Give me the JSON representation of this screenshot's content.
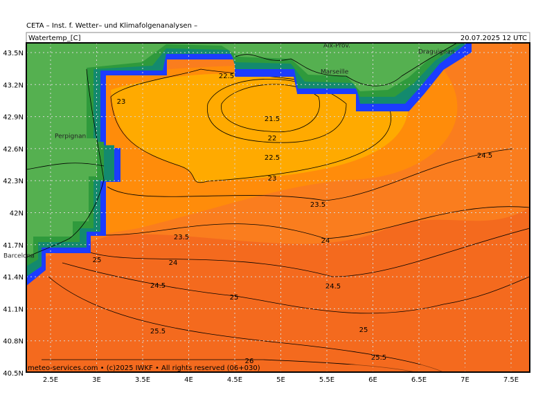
{
  "header": {
    "title": "CETA – Inst. f. Wetter– und Klimafolgenanalysen –"
  },
  "panel": {
    "variable": "Watertemp_[C]",
    "valid": "20.07.2025 12 UTC"
  },
  "axes": {
    "lat_labels": [
      "43.5N",
      "43.2N",
      "42.9N",
      "42.6N",
      "42.3N",
      "42N",
      "41.7N",
      "41.4N",
      "41.1N",
      "40.8N",
      "40.5N"
    ],
    "lon_labels": [
      "2.5E",
      "3E",
      "3.5E",
      "4E",
      "4.5E",
      "5E",
      "5.5E",
      "6E",
      "6.5E",
      "7E",
      "7.5E"
    ]
  },
  "contour_labels": [
    "22.5",
    "23",
    "21.5",
    "22",
    "22.5",
    "23",
    "24.5",
    "23.5",
    "24",
    "23.5",
    "24",
    "25",
    "24.5",
    "24.5",
    "25",
    "25",
    "25.5",
    "25.5",
    "26"
  ],
  "places": [
    "Aix-Prov.",
    "Marseille",
    "Draguignan",
    "Perpignan",
    "Barcelona"
  ],
  "footer": "meteo-services.com • (c)2025 IWKF • All rights reserved (06+030)"
}
